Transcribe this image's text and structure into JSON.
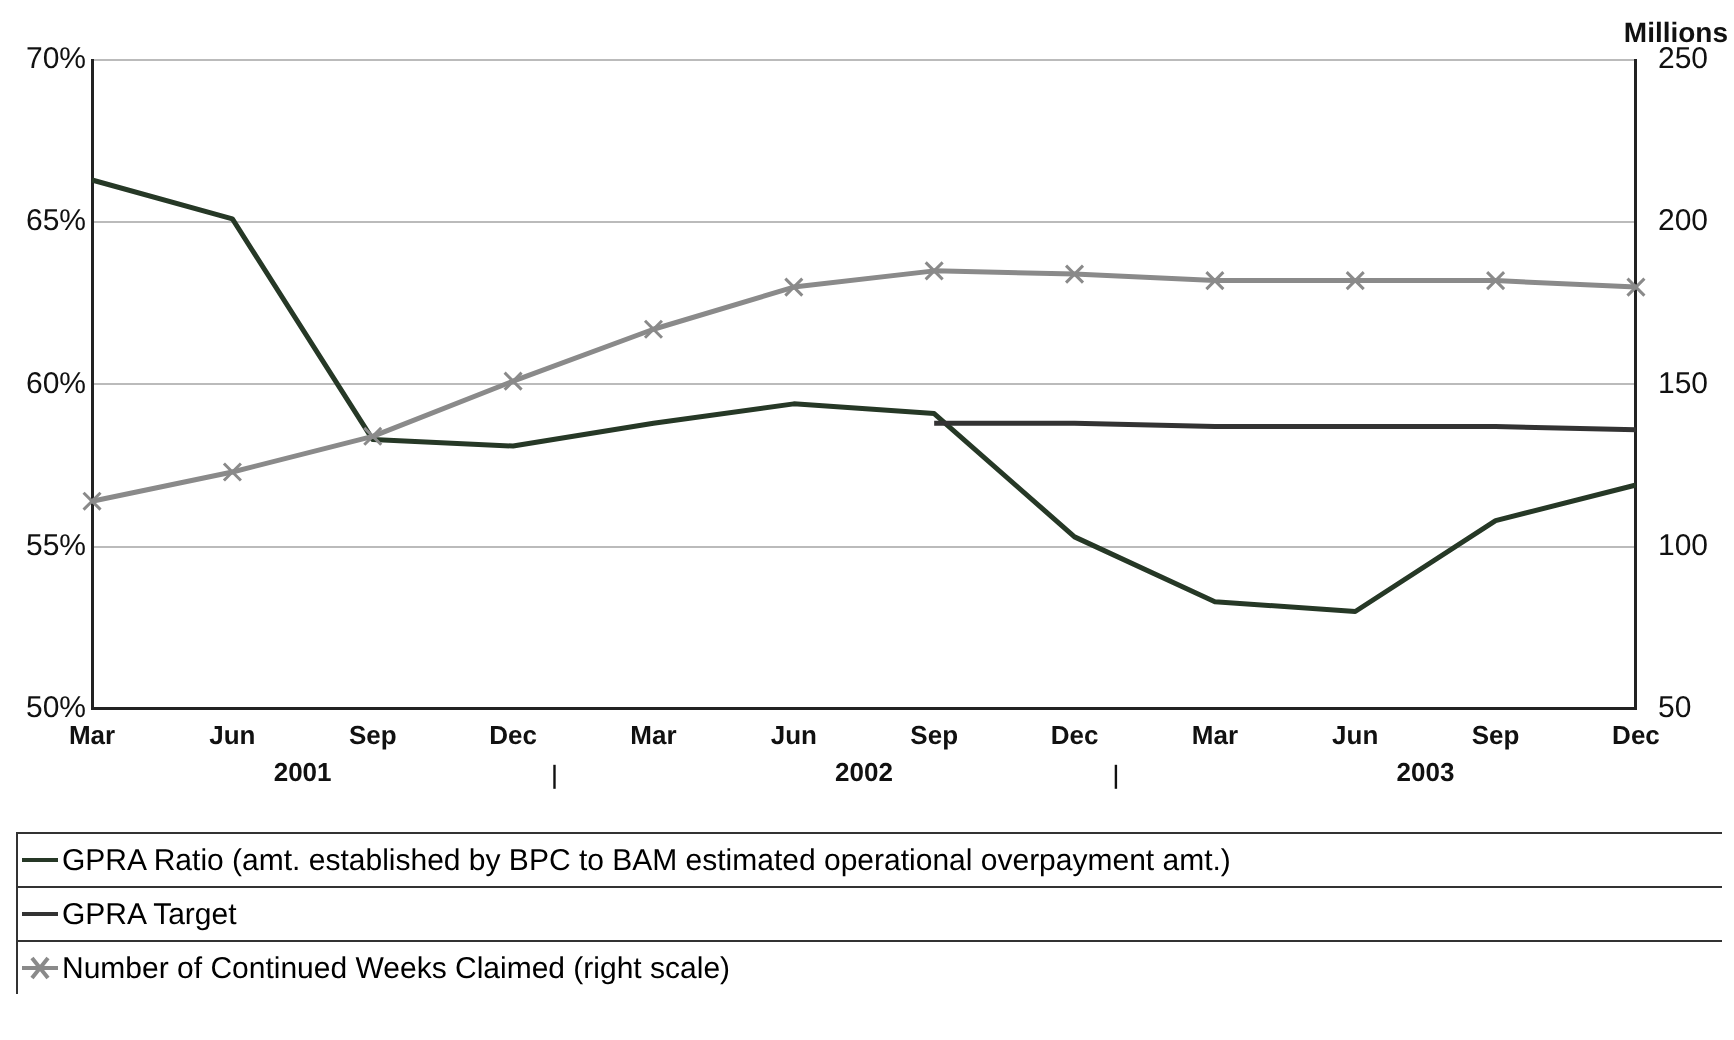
{
  "chart_data": {
    "type": "line",
    "categories": [
      "Mar",
      "Jun",
      "Sep",
      "Dec",
      "Mar",
      "Jun",
      "Sep",
      "Dec",
      "Mar",
      "Jun",
      "Sep",
      "Dec"
    ],
    "annotations": [
      "2001",
      "2002",
      "2003"
    ],
    "y2label": "Millions",
    "ylim": [
      50,
      70
    ],
    "yticks": [
      {
        "value": 50,
        "label": "50%"
      },
      {
        "value": 55,
        "label": "55%"
      },
      {
        "value": 60,
        "label": "60%"
      },
      {
        "value": 65,
        "label": "65%"
      },
      {
        "value": 70,
        "label": "70%"
      }
    ],
    "y2lim": [
      50,
      250
    ],
    "y2ticks": [
      50,
      100,
      150,
      200,
      250
    ],
    "grid": "y",
    "legend": "bottom",
    "line_style": "solid",
    "series": [
      {
        "name": "GPRA Ratio (amt. established by BPC to BAM estimated operational overpayment amt.)",
        "color": "#263826",
        "marker": "none",
        "values": [
          66.3,
          65.1,
          58.3,
          58.1,
          58.8,
          59.4,
          59.1,
          55.3,
          53.3,
          53.0,
          55.8,
          56.9
        ]
      },
      {
        "name": "GPRA Target",
        "color": "#333333",
        "marker": "none",
        "values": [
          null,
          null,
          null,
          null,
          null,
          null,
          58.8,
          58.8,
          58.7,
          58.7,
          58.7,
          58.6
        ]
      },
      {
        "name": "Number of Continued Weeks Claimed (right scale)",
        "color": "#8a8a8a",
        "marker": "cross",
        "axis": "y2",
        "values": [
          114,
          123,
          134,
          151,
          167,
          180,
          185,
          184,
          182,
          182,
          182,
          180
        ]
      }
    ]
  }
}
